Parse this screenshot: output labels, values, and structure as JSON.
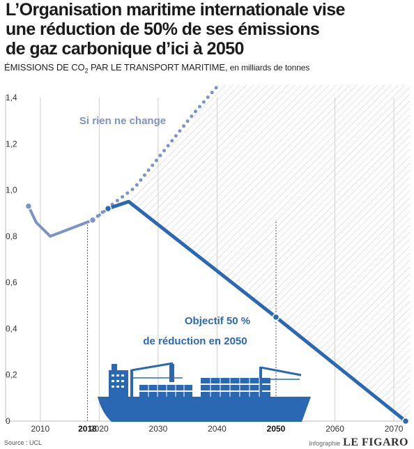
{
  "title_lines": [
    "L’Organisation maritime internationale vise",
    "une réduction de 50% de ses émissions",
    "de gaz carbonique d’ici à 2050"
  ],
  "subtitle": {
    "main_before": "ÉMISSIONS DE CO",
    "main_sub": "2",
    "main_after": " PAR LE TRANSPORT MARITIME,",
    "unit": " en milliards de tonnes"
  },
  "chart_data": {
    "type": "line",
    "ylim": [
      0,
      1.4
    ],
    "xlim": [
      2006,
      2072
    ],
    "y_ticks": [
      0,
      0.2,
      0.4,
      0.6,
      0.8,
      1.0,
      1.2,
      1.4
    ],
    "y_tick_labels": [
      "0",
      "0,2",
      "0,4",
      "0,6",
      "0,8",
      "1,0",
      "1,2",
      "1,4"
    ],
    "x_ticks": [
      2010,
      2018,
      2020,
      2030,
      2040,
      2050,
      2060,
      2070
    ],
    "x_tick_labels": [
      "2010",
      "2018",
      "2020",
      "2030",
      "2040",
      "2050",
      "2060",
      "2070"
    ],
    "x_bold_ticks": [
      2018,
      2050
    ],
    "series": [
      {
        "name": "",
        "style": "solid-light",
        "color": "#7b93c6",
        "x": [
          2008,
          2009.3,
          2011.7,
          2018.9
        ],
        "y": [
          0.93,
          0.86,
          0.8,
          0.87
        ]
      },
      {
        "name": "Si rien ne change",
        "style": "dotted",
        "color": "#7b93c6",
        "x": [
          2018.9,
          2021.8,
          2026,
          2031,
          2036,
          2040.1
        ],
        "y": [
          0.87,
          0.93,
          1.01,
          1.17,
          1.33,
          1.45
        ]
      },
      {
        "name": "",
        "style": "dashed-transition",
        "color": "#7b93c6",
        "x": [
          2018.9,
          2021.5
        ],
        "y": [
          0.87,
          0.92
        ]
      },
      {
        "name": "Objectif 50 % de réduction en 2050",
        "style": "solid",
        "color": "#2b68b4",
        "x": [
          2021.5,
          2025,
          2050,
          2072
        ],
        "y": [
          0.92,
          0.95,
          0.45,
          0
        ]
      }
    ],
    "markers": [
      {
        "x": 2008,
        "y": 0.93,
        "color": "#7b93c6"
      },
      {
        "x": 2018.9,
        "y": 0.87,
        "color": "#7b93c6"
      },
      {
        "x": 2021.5,
        "y": 0.92,
        "color": "#2b68b4"
      },
      {
        "x": 2050,
        "y": 0.45,
        "color": "#2b68b4"
      },
      {
        "x": 2072,
        "y": 0,
        "color": "#2b68b4"
      }
    ],
    "annotations": [
      {
        "text": "Si rien ne change",
        "color": "#7b93c6"
      },
      {
        "text": "Objectif 50 %",
        "color": "#2b68b4"
      },
      {
        "text": "de réduction en 2050",
        "color": "#2b68b4"
      }
    ],
    "grid": "vertical",
    "shaded_region": "hatched above the target line from 2025"
  },
  "source": "Source : UCL",
  "credit": {
    "label": "Infographie",
    "brand": "LE FIGARO"
  },
  "colors": {
    "target_line": "#2b68b4",
    "trend_line": "#7b93c6",
    "ship": "#2b68b4"
  }
}
